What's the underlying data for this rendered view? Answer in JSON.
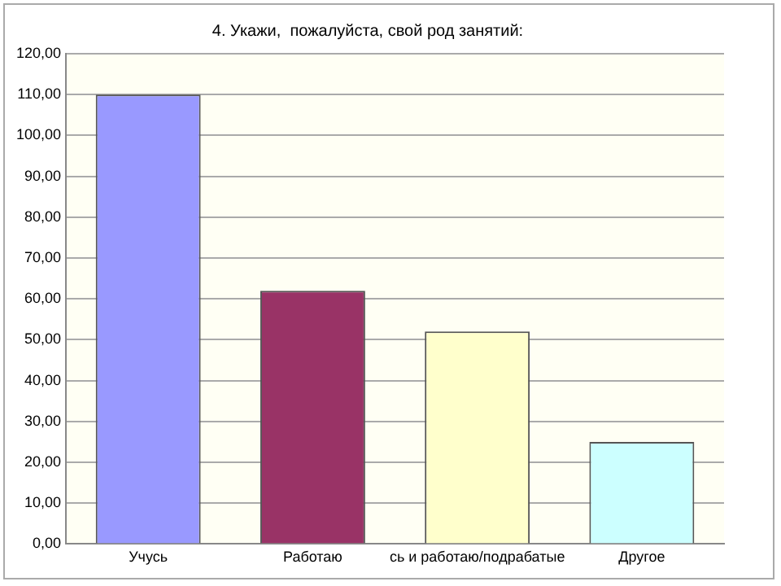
{
  "chart_data": {
    "type": "bar",
    "title": "4. Укажи,  пожалуйста, свой род занятий:",
    "categories": [
      "Учусь",
      "Работаю",
      "сь и работаю/подрабатые",
      "Другое"
    ],
    "values": [
      110,
      62,
      52,
      25
    ],
    "colors": [
      "#9999ff",
      "#993366",
      "#ffffcc",
      "#ccffff"
    ],
    "ylim": [
      0,
      120
    ],
    "yticks": [
      {
        "value": 0,
        "label": "0,00"
      },
      {
        "value": 10,
        "label": "10,00"
      },
      {
        "value": 20,
        "label": "20,00"
      },
      {
        "value": 30,
        "label": "30,00"
      },
      {
        "value": 40,
        "label": "40,00"
      },
      {
        "value": 50,
        "label": "50,00"
      },
      {
        "value": 60,
        "label": "60,00"
      },
      {
        "value": 70,
        "label": "70,00"
      },
      {
        "value": 80,
        "label": "80,00"
      },
      {
        "value": 90,
        "label": "90,00"
      },
      {
        "value": 100,
        "label": "100,00"
      },
      {
        "value": 110,
        "label": "110,00"
      },
      {
        "value": 120,
        "label": "120,00"
      }
    ],
    "grid": "y"
  }
}
